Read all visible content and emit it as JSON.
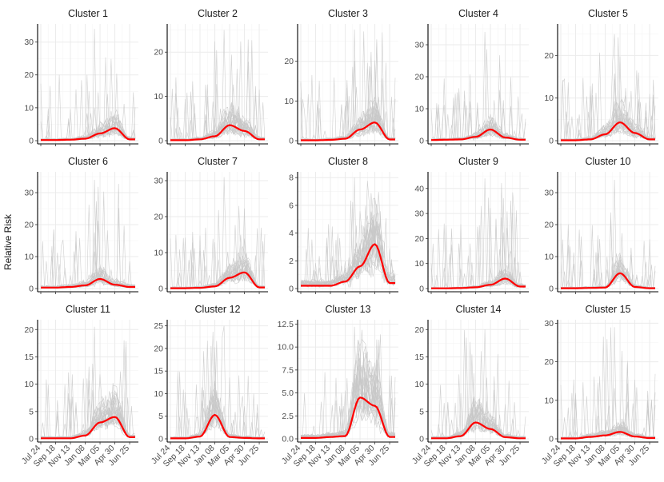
{
  "chart_data": {
    "type": "line",
    "ylabel": "Relative Risk",
    "xlabel": "",
    "x_tick_labels": [
      "Jul 24",
      "Sep 18",
      "Nov 13",
      "Jan 08",
      "Mar 05",
      "Apr 30",
      "Jun 25"
    ],
    "n_weeks": 52,
    "colors": {
      "mean_line": "#ff0000",
      "individual_lines": "#c8c8c8"
    },
    "note": "Each panel shows many individual series (grey) and the cluster mean (red). Mean values are estimated from the figure at the 7 x-tick positions (weeks 0, 8, 16, 24, 32, 40, 48).",
    "panels": [
      {
        "title": "Cluster 1",
        "ylim": [
          0,
          35
        ],
        "yticks": [
          0,
          10,
          20,
          30
        ],
        "spike_max": 34,
        "mean": [
          0.2,
          0.2,
          0.3,
          0.6,
          2.2,
          3.8,
          0.4
        ]
      },
      {
        "title": "Cluster 2",
        "ylim": [
          0,
          26
        ],
        "yticks": [
          0,
          10,
          20
        ],
        "spike_max": 25,
        "mean": [
          0.1,
          0.1,
          0.3,
          1.0,
          3.5,
          2.2,
          0.3
        ]
      },
      {
        "title": "Cluster 3",
        "ylim": [
          0,
          29
        ],
        "yticks": [
          0,
          10,
          20
        ],
        "spike_max": 28,
        "mean": [
          0.1,
          0.1,
          0.2,
          0.5,
          2.8,
          4.6,
          0.3
        ]
      },
      {
        "title": "Cluster 4",
        "ylim": [
          0,
          36
        ],
        "yticks": [
          0,
          10,
          20,
          30
        ],
        "spike_max": 34,
        "mean": [
          0.2,
          0.3,
          0.4,
          1.2,
          3.5,
          1.0,
          0.3
        ]
      },
      {
        "title": "Cluster 5",
        "ylim": [
          0,
          27
        ],
        "yticks": [
          0,
          10,
          20
        ],
        "spike_max": 25,
        "mean": [
          0.1,
          0.1,
          0.3,
          1.5,
          4.3,
          1.8,
          0.3
        ]
      },
      {
        "title": "Cluster 6",
        "ylim": [
          0,
          36
        ],
        "yticks": [
          0,
          10,
          20,
          30
        ],
        "spike_max": 34,
        "mean": [
          0.3,
          0.3,
          0.5,
          1.0,
          3.0,
          1.2,
          0.5
        ]
      },
      {
        "title": "Cluster 7",
        "ylim": [
          0,
          32
        ],
        "yticks": [
          0,
          10,
          20,
          30
        ],
        "spike_max": 31,
        "mean": [
          0.1,
          0.1,
          0.2,
          0.6,
          3.0,
          4.5,
          0.3
        ]
      },
      {
        "title": "Cluster 8",
        "ylim": [
          0,
          8.3
        ],
        "yticks": [
          0,
          2,
          4,
          6,
          8
        ],
        "spike_max": 8,
        "mean": [
          0.2,
          0.2,
          0.2,
          0.5,
          1.6,
          3.2,
          0.4
        ]
      },
      {
        "title": "Cluster 9",
        "ylim": [
          0,
          46
        ],
        "yticks": [
          0,
          10,
          20,
          30,
          40
        ],
        "spike_max": 44,
        "mean": [
          0.1,
          0.1,
          0.2,
          0.5,
          1.5,
          4.0,
          0.8
        ]
      },
      {
        "title": "Cluster 10",
        "ylim": [
          0,
          36
        ],
        "yticks": [
          0,
          10,
          20,
          30
        ],
        "spike_max": 34,
        "mean": [
          0.1,
          0.1,
          0.2,
          0.3,
          4.8,
          0.5,
          0.1
        ]
      },
      {
        "title": "Cluster 11",
        "ylim": [
          0,
          21.5
        ],
        "yticks": [
          0,
          5,
          10,
          15,
          20
        ],
        "spike_max": 20.5,
        "mean": [
          0.1,
          0.1,
          0.1,
          0.6,
          3.0,
          4.0,
          0.3
        ]
      },
      {
        "title": "Cluster 12",
        "ylim": [
          0,
          26
        ],
        "yticks": [
          0,
          5,
          10,
          15,
          20,
          25
        ],
        "spike_max": 25,
        "mean": [
          0.1,
          0.1,
          0.5,
          5.3,
          0.4,
          0.2,
          0.1
        ]
      },
      {
        "title": "Cluster 13",
        "ylim": [
          0,
          12.8
        ],
        "yticks": [
          0,
          2.5,
          5.0,
          7.5,
          10.0,
          12.5
        ],
        "tick_labels": [
          "0.0",
          "2.5",
          "5.0",
          "7.5",
          "10.0",
          "12.5"
        ],
        "spike_max": 12.2,
        "mean": [
          0.1,
          0.1,
          0.2,
          0.3,
          4.5,
          3.6,
          0.2
        ]
      },
      {
        "title": "Cluster 14",
        "ylim": [
          0,
          21.5
        ],
        "yticks": [
          0,
          5,
          10,
          15,
          20
        ],
        "spike_max": 20,
        "mean": [
          0.1,
          0.1,
          0.5,
          3.0,
          1.8,
          0.3,
          0.1
        ]
      },
      {
        "title": "Cluster 15",
        "ylim": [
          0,
          30.5
        ],
        "yticks": [
          0,
          10,
          20,
          30
        ],
        "spike_max": 29,
        "mean": [
          0.1,
          0.1,
          0.5,
          0.9,
          1.8,
          0.6,
          0.2
        ]
      }
    ]
  }
}
